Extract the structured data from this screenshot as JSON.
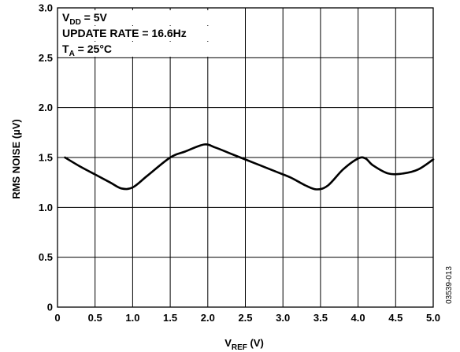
{
  "chart_data": {
    "type": "line",
    "title": "",
    "xlabel": {
      "main": "V",
      "sub": "REF",
      "tail": " (V)"
    },
    "ylabel": "RMS NOISE (µV)",
    "xlim": [
      0,
      5.0
    ],
    "ylim": [
      0,
      3.0
    ],
    "xticks": [
      0,
      0.5,
      1.0,
      1.5,
      2.0,
      2.5,
      3.0,
      3.5,
      4.0,
      4.5,
      5.0
    ],
    "xtick_labels": [
      "0",
      "0.5",
      "1.0",
      "1.5",
      "2.0",
      "2.5",
      "3.0",
      "3.5",
      "4.0",
      "4.5",
      "5.0"
    ],
    "yticks": [
      0,
      0.5,
      1.0,
      1.5,
      2.0,
      2.5,
      3.0
    ],
    "ytick_labels": [
      "0",
      "0.5",
      "1.0",
      "1.5",
      "2.0",
      "2.5",
      "3.0"
    ],
    "grid": true,
    "legend": "none",
    "annotations": [
      {
        "main": "V",
        "sub": "DD",
        "tail": " = 5V"
      },
      {
        "main": "UPDATE RATE = 16.6Hz",
        "sub": "",
        "tail": ""
      },
      {
        "main": "T",
        "sub": "A",
        "tail": " = 25°C"
      }
    ],
    "figure_id": "03539-013",
    "series": [
      {
        "color": "#000000",
        "x": [
          0.1,
          0.3,
          0.5,
          0.7,
          0.85,
          1.0,
          1.2,
          1.5,
          1.7,
          1.95,
          2.1,
          2.3,
          2.5,
          2.7,
          2.9,
          3.1,
          3.3,
          3.45,
          3.6,
          3.8,
          4.0,
          4.1,
          4.2,
          4.4,
          4.6,
          4.8,
          5.0
        ],
        "y": [
          1.5,
          1.41,
          1.33,
          1.25,
          1.19,
          1.2,
          1.32,
          1.5,
          1.56,
          1.63,
          1.6,
          1.54,
          1.48,
          1.42,
          1.36,
          1.3,
          1.22,
          1.18,
          1.22,
          1.38,
          1.49,
          1.49,
          1.42,
          1.34,
          1.34,
          1.38,
          1.48
        ]
      }
    ]
  }
}
